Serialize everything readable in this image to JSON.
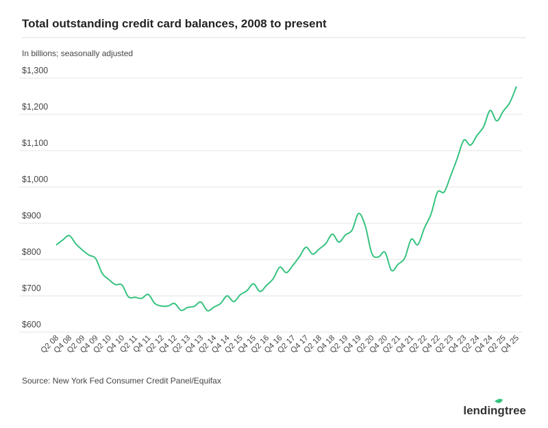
{
  "chart_data": {
    "type": "line",
    "title": "Total outstanding credit card balances, 2008 to present",
    "subtitle": "In billions; seasonally adjusted",
    "source": "Source: New York Fed Consumer Credit Panel/Equifax",
    "logo": "lendingtree",
    "categories": [
      "Q2 08",
      null,
      "Q4 08",
      null,
      "Q2 09",
      null,
      "Q4 09",
      null,
      "Q2 10",
      null,
      "Q4 10",
      null,
      "Q2 11",
      null,
      "Q4 11",
      null,
      "Q2 12",
      null,
      "Q4 12",
      null,
      "Q2 13",
      null,
      "Q4 13",
      null,
      "Q2 14",
      null,
      "Q4 14",
      null,
      "Q2 15",
      null,
      "Q4 15",
      null,
      "Q2 16",
      null,
      "Q4 16",
      null,
      "Q2 17",
      null,
      "Q4 17",
      null,
      "Q2 18",
      null,
      "Q4 18",
      null,
      "Q2 19",
      null,
      "Q4 19",
      null,
      "Q2 20",
      null,
      "Q4 20",
      null,
      "Q2 21",
      null,
      "Q4 21",
      null,
      "Q2 22",
      null,
      "Q4 22",
      null,
      "Q2 23",
      null,
      "Q4 23",
      null,
      "Q2 24",
      null,
      "Q4 24",
      null,
      "Q2 25",
      null,
      "Q4 25"
    ],
    "series": [
      {
        "name": "Credit card balances",
        "color": "#35c27f",
        "values": [
          840,
          854,
          866,
          843,
          826,
          812,
          803,
          762,
          745,
          731,
          730,
          697,
          696,
          693,
          704,
          679,
          672,
          672,
          679,
          660,
          668,
          671,
          683,
          659,
          669,
          679,
          700,
          684,
          703,
          714,
          733,
          712,
          729,
          747,
          779,
          764,
          784,
          808,
          834,
          815,
          829,
          844,
          870,
          848,
          868,
          881,
          927,
          893,
          817,
          807,
          820,
          770,
          787,
          804,
          856,
          841,
          887,
          925,
          986,
          986,
          1031,
          1079,
          1129,
          1115,
          1142,
          1166,
          1211,
          1182,
          1209,
          1233,
          1277
        ]
      }
    ],
    "ylim": [
      600,
      1300
    ],
    "yticks": [
      {
        "value": 600,
        "label": "$600"
      },
      {
        "value": 700,
        "label": "$700"
      },
      {
        "value": 800,
        "label": "$800"
      },
      {
        "value": 900,
        "label": "$900"
      },
      {
        "value": 1000,
        "label": "$1,000"
      },
      {
        "value": 1100,
        "label": "$1,100"
      },
      {
        "value": 1200,
        "label": "$1,200"
      },
      {
        "value": 1300,
        "label": "$1,300"
      }
    ],
    "grid": true
  }
}
